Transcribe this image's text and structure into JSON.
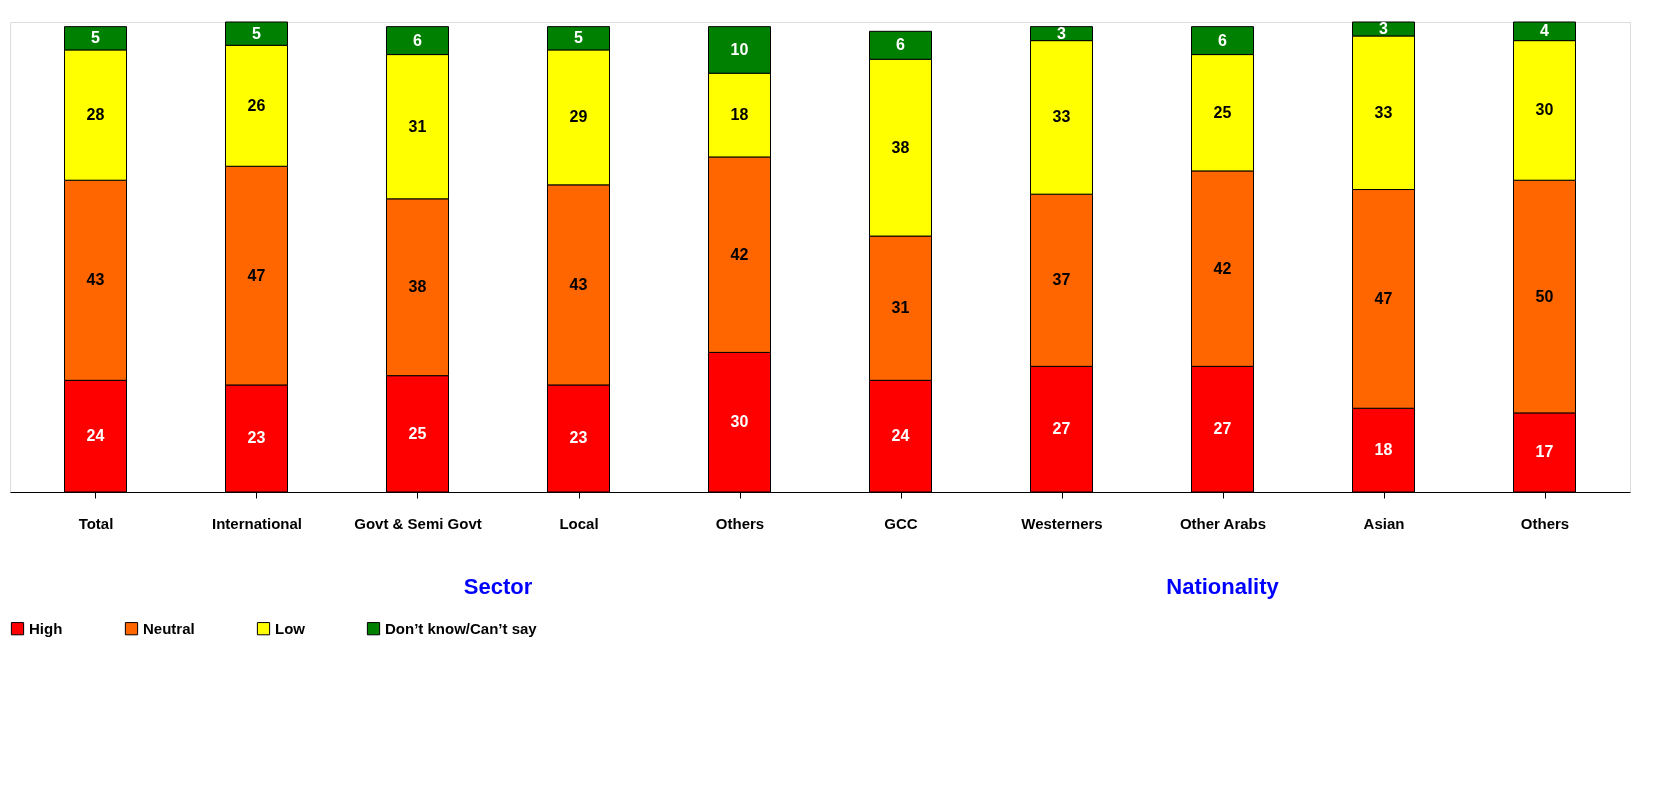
{
  "chart_data": {
    "type": "bar",
    "stacked": true,
    "data_labels": true,
    "tick_labels": "x",
    "grid": false,
    "legend": "bottom",
    "categories": [
      "Total",
      "International",
      "Govt & Semi Govt",
      "Local",
      "Others",
      "GCC",
      "Westerners",
      "Other Arabs",
      "Asian",
      "Others"
    ],
    "series": [
      {
        "name": "High",
        "color": "#ff0000",
        "values": [
          24,
          23,
          25,
          23,
          30,
          24,
          27,
          27,
          18,
          17
        ]
      },
      {
        "name": "Neutral",
        "color": "#ff6600",
        "values": [
          43,
          47,
          38,
          43,
          42,
          31,
          37,
          42,
          47,
          50
        ]
      },
      {
        "name": "Low",
        "color": "#ffff00",
        "values": [
          28,
          26,
          31,
          29,
          18,
          38,
          33,
          25,
          33,
          30
        ]
      },
      {
        "name": "Don’t know/Can’t say",
        "color": "#008000",
        "values": [
          5,
          5,
          6,
          5,
          10,
          6,
          3,
          6,
          3,
          4
        ]
      }
    ],
    "annotations": [
      "Sector",
      "Nationality"
    ]
  }
}
